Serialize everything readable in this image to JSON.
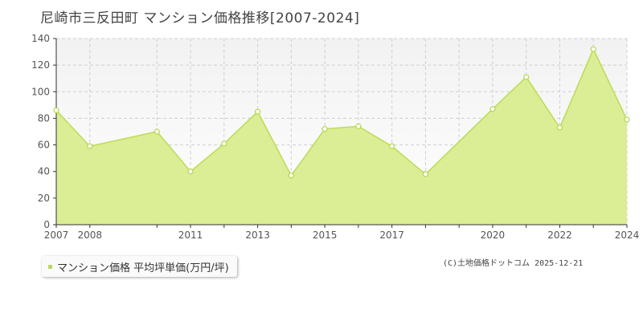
{
  "colors": {
    "area_fill": "#d9ec8f",
    "line": "#bcdc55",
    "marker_stroke": "#b5d74e",
    "plot_bg_top": "#f2f2f2",
    "grid": "#cfcfcf",
    "axis": "#333333"
  },
  "chart_data": {
    "type": "area",
    "title": "尼崎市三反田町 マンション価格推移[2007-2024]",
    "xlim": [
      2007,
      2024
    ],
    "ylim": [
      0,
      140
    ],
    "y_ticks": [
      0,
      20,
      40,
      60,
      80,
      100,
      120,
      140
    ],
    "x_tick_labels": [
      "2007",
      "2008",
      "2011",
      "2013",
      "2015",
      "2017",
      "2020",
      "2022",
      "2024"
    ],
    "x_gridlines": [
      2007,
      2008,
      2010,
      2011,
      2012,
      2013,
      2014,
      2015,
      2016,
      2017,
      2018,
      2019,
      2020,
      2021,
      2022,
      2023,
      2024
    ],
    "grid": true,
    "legend": {
      "placement": "bottom-left"
    },
    "series": [
      {
        "name": "マンション価格 平均坪単価(万円/坪)",
        "points": [
          {
            "x": 2007,
            "y": 86
          },
          {
            "x": 2008,
            "y": 59
          },
          {
            "x": 2010,
            "y": 70
          },
          {
            "x": 2011,
            "y": 40
          },
          {
            "x": 2012,
            "y": 61
          },
          {
            "x": 2013,
            "y": 85
          },
          {
            "x": 2014,
            "y": 37
          },
          {
            "x": 2015,
            "y": 72
          },
          {
            "x": 2016,
            "y": 74
          },
          {
            "x": 2017,
            "y": 59
          },
          {
            "x": 2018,
            "y": 38
          },
          {
            "x": 2020,
            "y": 87
          },
          {
            "x": 2021,
            "y": 111
          },
          {
            "x": 2022,
            "y": 73
          },
          {
            "x": 2023,
            "y": 132
          },
          {
            "x": 2024,
            "y": 79
          }
        ]
      }
    ]
  },
  "credit": "(C)土地価格ドットコム 2025-12-21"
}
